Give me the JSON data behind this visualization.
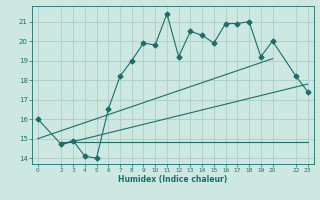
{
  "xlabel": "Humidex (Indice chaleur)",
  "bg_color": "#cce8e0",
  "grid_color": "#aacfc8",
  "line_color": "#1a7068",
  "xlim": [
    -0.5,
    23.5
  ],
  "ylim": [
    13.7,
    21.8
  ],
  "xticks": [
    0,
    2,
    3,
    4,
    5,
    6,
    7,
    8,
    9,
    10,
    11,
    12,
    13,
    14,
    15,
    16,
    17,
    18,
    19,
    20,
    22,
    23
  ],
  "yticks": [
    14,
    15,
    16,
    17,
    18,
    19,
    20,
    21
  ],
  "line1_x": [
    0,
    2,
    3,
    4,
    5,
    6,
    7,
    8,
    9,
    10,
    11,
    12,
    13,
    14,
    15,
    16,
    17,
    18,
    19,
    20,
    22,
    23
  ],
  "line1_y": [
    16.0,
    14.7,
    14.9,
    14.1,
    14.0,
    16.5,
    18.2,
    19.0,
    19.9,
    19.8,
    21.4,
    19.2,
    20.5,
    20.3,
    19.9,
    20.9,
    20.9,
    21.0,
    19.2,
    20.0,
    18.2,
    17.4
  ],
  "line2_x": [
    0,
    20
  ],
  "line2_y": [
    15.0,
    19.1
  ],
  "line3_x": [
    2,
    23
  ],
  "line3_y": [
    14.85,
    14.85
  ],
  "line4_x": [
    2,
    23
  ],
  "line4_y": [
    14.7,
    17.8
  ]
}
